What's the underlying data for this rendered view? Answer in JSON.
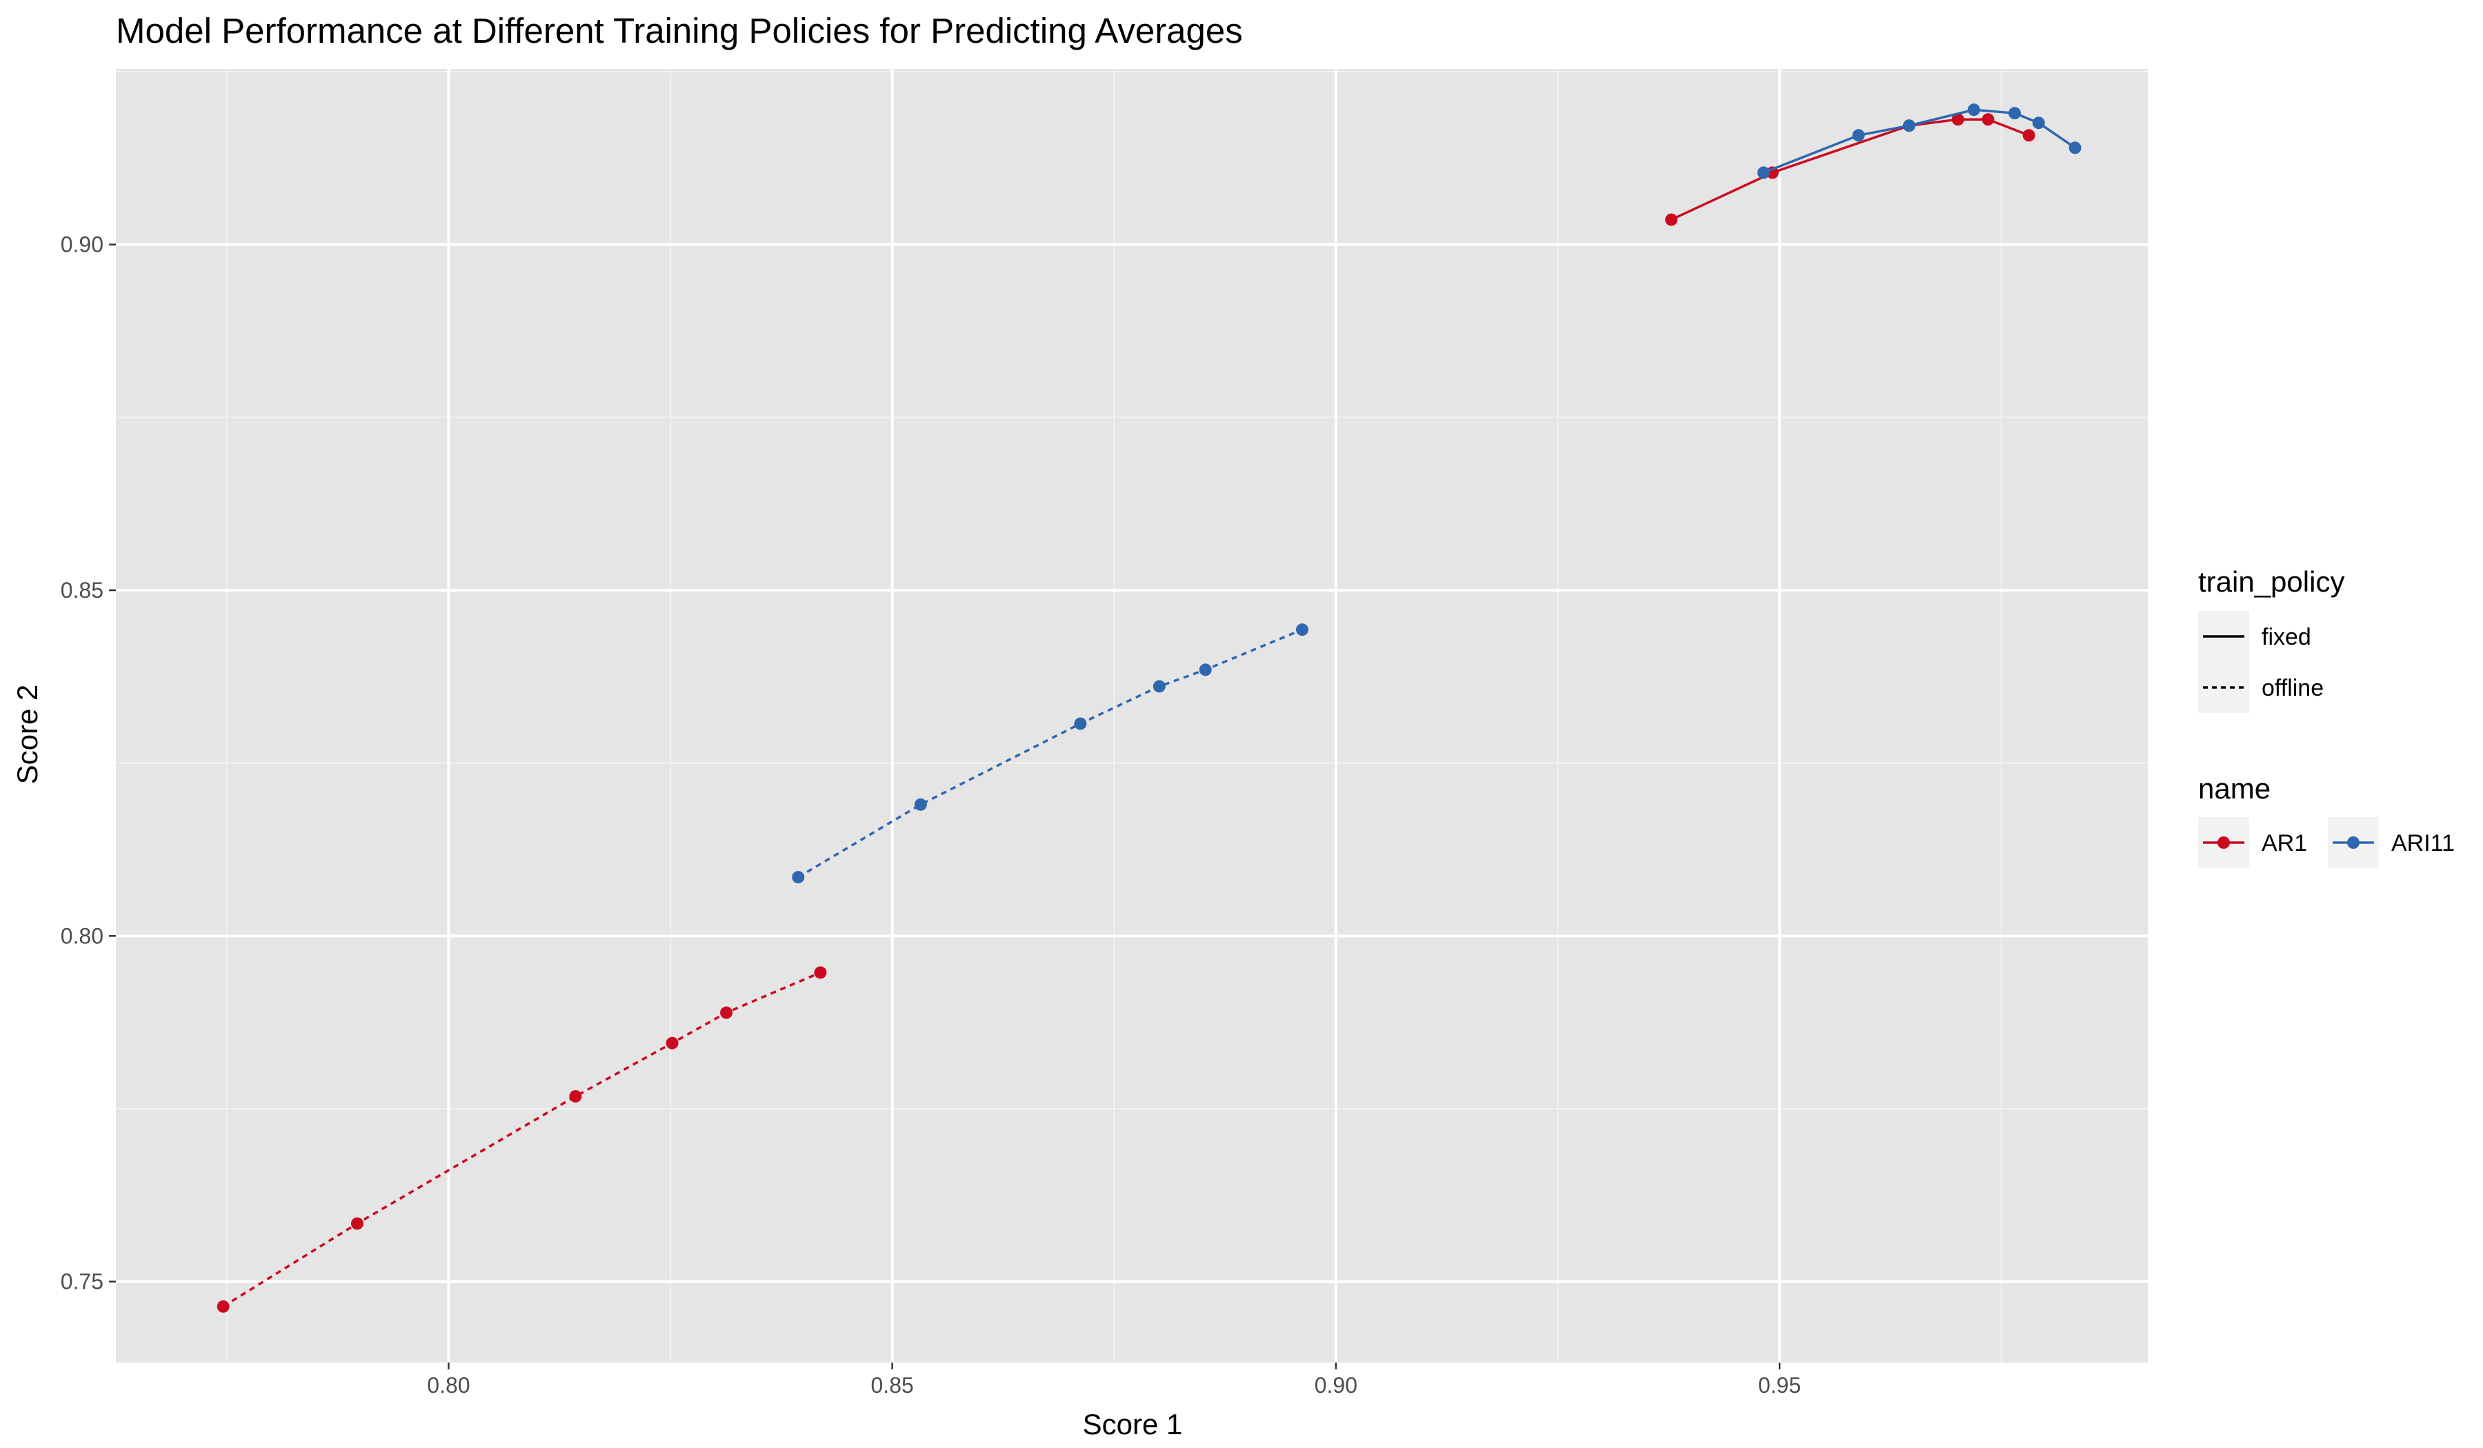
{
  "chart_data": {
    "type": "line",
    "title": "Model Performance at Different Training Policies for Predicting Averages",
    "xlabel": "Score 1",
    "ylabel": "Score 2",
    "xlim": [
      0.7625,
      0.9915
    ],
    "ylim": [
      0.7383,
      0.9254
    ],
    "x_ticks": [
      0.8,
      0.85,
      0.9,
      0.95
    ],
    "x_tick_labels": [
      "0.80",
      "0.85",
      "0.90",
      "0.95"
    ],
    "y_ticks": [
      0.75,
      0.8,
      0.85,
      0.9
    ],
    "y_tick_labels": [
      "0.75",
      "0.80",
      "0.85",
      "0.90"
    ],
    "grid": true,
    "legend_placement": "right",
    "legends": {
      "train_policy": {
        "title": "train_policy",
        "entries": [
          {
            "label": "fixed",
            "style": "solid"
          },
          {
            "label": "offline",
            "style": "dotted"
          }
        ]
      },
      "name": {
        "title": "name",
        "entries": [
          {
            "label": "AR1",
            "color": "#CB0A1F"
          },
          {
            "label": "ARI11",
            "color": "#2F67AF"
          }
        ]
      }
    },
    "series": [
      {
        "name": "AR1",
        "train_policy": "offline",
        "color": "#CB0A1F",
        "style": "dotted",
        "points": [
          [
            0.7746,
            0.7464
          ],
          [
            0.7897,
            0.7584
          ],
          [
            0.8143,
            0.7768
          ],
          [
            0.8252,
            0.7845
          ],
          [
            0.8313,
            0.7889
          ],
          [
            0.8419,
            0.7947
          ]
        ]
      },
      {
        "name": "ARI11",
        "train_policy": "offline",
        "color": "#2F67AF",
        "style": "dotted",
        "points": [
          [
            0.8394,
            0.8085
          ],
          [
            0.8532,
            0.819
          ],
          [
            0.8712,
            0.8307
          ],
          [
            0.8801,
            0.8361
          ],
          [
            0.8853,
            0.8385
          ],
          [
            0.8962,
            0.8443
          ]
        ]
      },
      {
        "name": "AR1",
        "train_policy": "fixed",
        "color": "#CB0A1F",
        "style": "solid",
        "points": [
          [
            0.9378,
            0.9036
          ],
          [
            0.9492,
            0.9104
          ],
          [
            0.9646,
            0.9172
          ],
          [
            0.9701,
            0.9181
          ],
          [
            0.9735,
            0.9181
          ],
          [
            0.9781,
            0.9158
          ]
        ]
      },
      {
        "name": "ARI11",
        "train_policy": "fixed",
        "color": "#2F67AF",
        "style": "solid",
        "points": [
          [
            0.9482,
            0.9104
          ],
          [
            0.9589,
            0.9158
          ],
          [
            0.9646,
            0.9172
          ],
          [
            0.9719,
            0.9195
          ],
          [
            0.9765,
            0.919
          ],
          [
            0.9792,
            0.9176
          ],
          [
            0.9833,
            0.914
          ]
        ]
      }
    ]
  }
}
